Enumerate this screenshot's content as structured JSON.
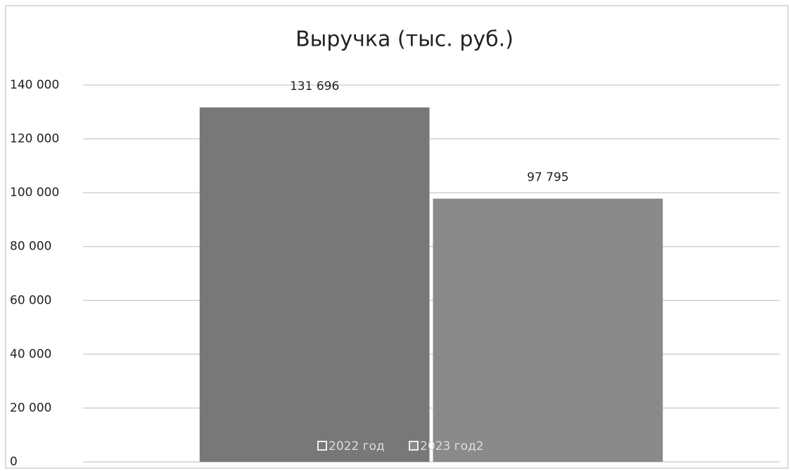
{
  "chart_data": {
    "type": "bar",
    "title": "Выручка (тыс. руб.)",
    "categories": [
      null
    ],
    "series": [
      {
        "name": "2022 год",
        "color": "#787878",
        "values": [
          131696
        ],
        "value_labels": [
          "131 696"
        ]
      },
      {
        "name": "2023 год2",
        "color": "#8a8a8a",
        "values": [
          97795
        ],
        "value_labels": [
          "97 795"
        ]
      }
    ],
    "ylim": [
      0,
      140000
    ],
    "yticks": [
      0,
      {
        "value": 20000,
        "label": "20 000"
      },
      {
        "value": 40000,
        "label": "40 000"
      },
      {
        "value": 60000,
        "label": "60 000"
      },
      {
        "value": 80000,
        "label": "80 000"
      },
      {
        "value": 100000,
        "label": "100 000"
      },
      {
        "value": 120000,
        "label": "120 000"
      },
      {
        "value": 140000,
        "label": "140 000"
      }
    ],
    "grid": true,
    "legend": "bottom"
  }
}
